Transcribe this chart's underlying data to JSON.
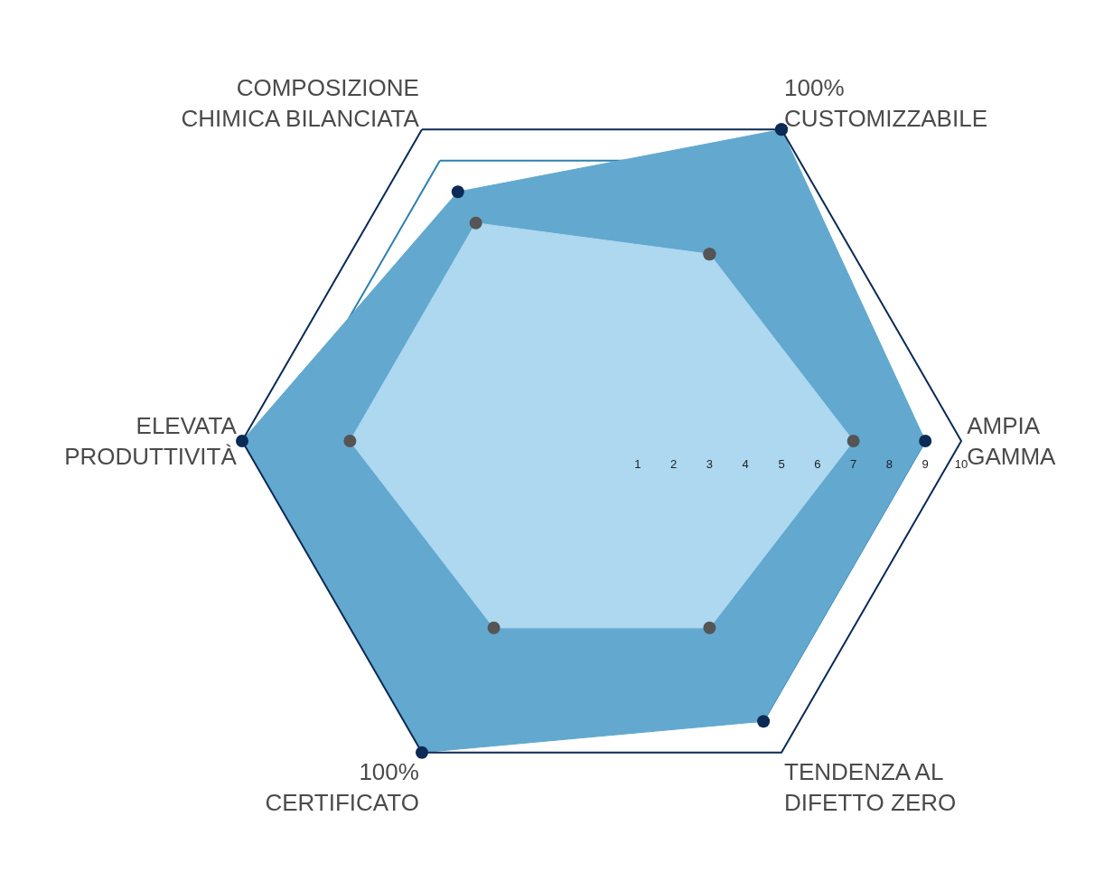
{
  "chart_data": {
    "type": "radar",
    "categories": [
      "100%\nCUSTOMIZZABILE",
      "AMPIA\nGAMMA",
      "TENDENZA AL\nDIFETTO ZERO",
      "100%\nCERTIFICATO",
      "ELEVATA\nPRODUTTIVITÀ",
      "COMPOSIZIONE\nCHIMICA BILANCIATA"
    ],
    "series": [
      {
        "color": "#62a8cf",
        "values": [
          10,
          9,
          9,
          10,
          10,
          8
        ]
      },
      {
        "color": "#add8ef",
        "values": [
          6,
          7,
          6,
          6,
          7,
          7
        ]
      }
    ],
    "ylim": [
      0,
      10
    ],
    "yticks": [
      1,
      2,
      3,
      4,
      5,
      6,
      7,
      8,
      9,
      10
    ],
    "grid": true,
    "marker": "circle"
  }
}
